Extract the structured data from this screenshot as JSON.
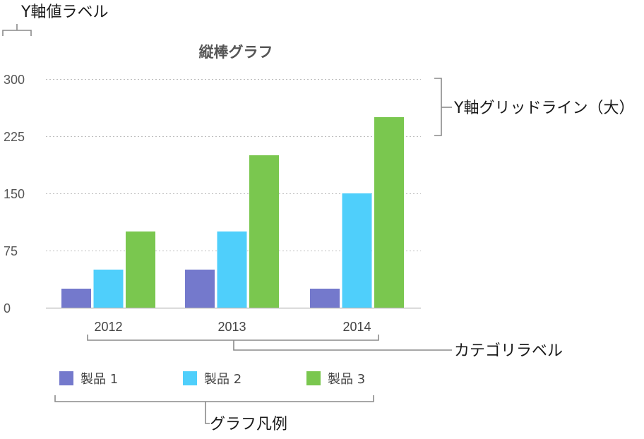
{
  "chart_data": {
    "type": "bar",
    "title": "縦棒グラフ",
    "categories": [
      "2012",
      "2013",
      "2014"
    ],
    "series": [
      {
        "name": "製品 1",
        "values": [
          25,
          50,
          25
        ],
        "color": "#7479cc"
      },
      {
        "name": "製品 2",
        "values": [
          50,
          100,
          150
        ],
        "color": "#4fcffb"
      },
      {
        "name": "製品 3",
        "values": [
          100,
          200,
          250
        ],
        "color": "#7ac74f"
      }
    ],
    "y_ticks": [
      "0",
      "75",
      "150",
      "225",
      "300"
    ],
    "ylim": [
      0,
      300
    ],
    "grid": true,
    "legend_position": "bottom-left",
    "xlabel": "",
    "ylabel": ""
  },
  "annotations": {
    "y_axis_value_label": "Y軸値ラベル",
    "y_axis_gridlines_major": "Y軸グリッドライン（大）",
    "category_label": "カテゴリラベル",
    "chart_legend": "グラフ凡例"
  }
}
